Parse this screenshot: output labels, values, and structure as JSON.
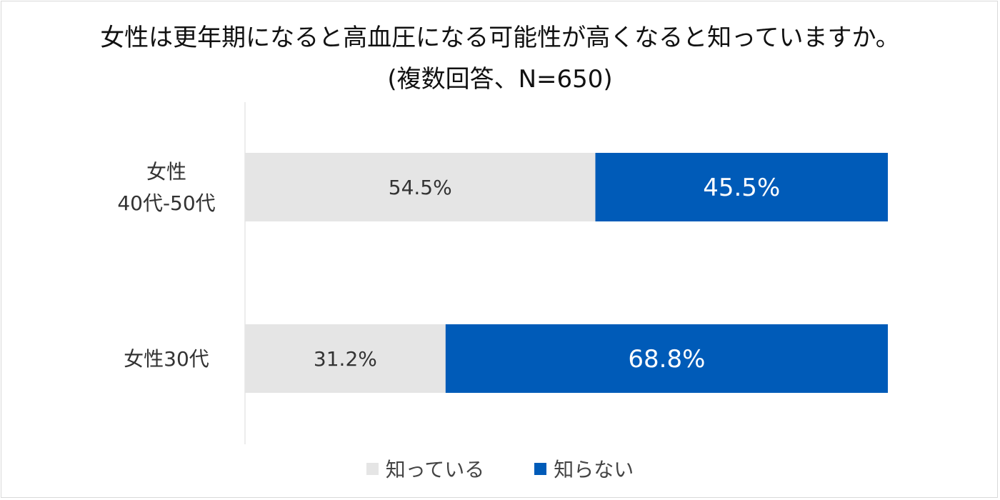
{
  "chart_data": {
    "type": "bar",
    "orientation": "horizontal",
    "stacked": "percent",
    "title": "女性は更年期になると高血圧になる可能性が高くなると知っていますか。",
    "subtitle": "(複数回答、N=650)",
    "categories": [
      "女性\n40代-50代",
      "女性30代"
    ],
    "series": [
      {
        "name": "知っている",
        "values": [
          54.5,
          31.2
        ],
        "color": "#e5e5e5",
        "label_color": "#333333"
      },
      {
        "name": "知らない",
        "values": [
          45.5,
          68.8
        ],
        "color": "#005bb8",
        "label_color": "#ffffff"
      }
    ],
    "value_labels": [
      [
        "54.5%",
        "31.2%"
      ],
      [
        "45.5%",
        "68.8%"
      ]
    ],
    "xlim": [
      0,
      100
    ],
    "grid": false,
    "legend_position": "bottom"
  }
}
